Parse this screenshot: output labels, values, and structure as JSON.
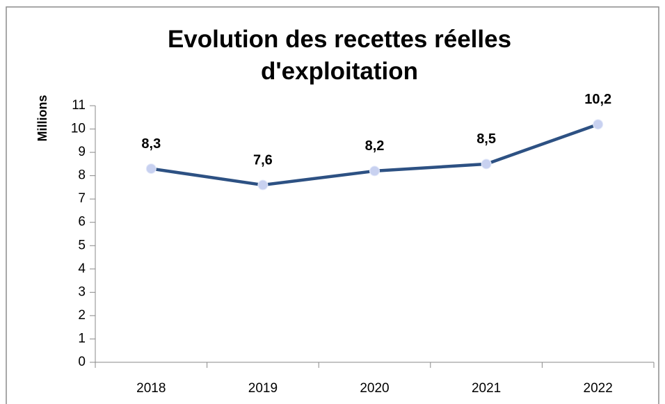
{
  "chart_data": {
    "type": "line",
    "title": "Evolution des recettes réelles d'exploitation",
    "y_label": "Millions",
    "categories": [
      "2018",
      "2019",
      "2020",
      "2021",
      "2022"
    ],
    "series": [
      {
        "name": "Recettes réelles d'exploitation",
        "color": "#2d5183",
        "values": [
          8.3,
          7.6,
          8.2,
          8.5,
          10.2
        ],
        "value_labels": [
          "8,3",
          "7,6",
          "8,2",
          "8,5",
          "10,2"
        ]
      }
    ],
    "marker_color": "#c8d1f0",
    "ylim": [
      0,
      11
    ],
    "yticks": [
      0,
      1,
      2,
      3,
      4,
      5,
      6,
      7,
      8,
      9,
      10,
      11
    ],
    "grid": false
  }
}
